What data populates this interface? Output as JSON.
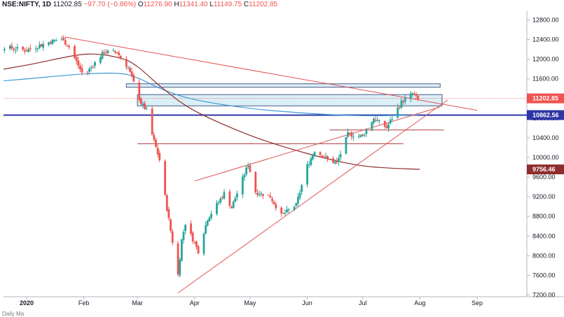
{
  "header": {
    "symbol": "NSE:NIFTY, 1D",
    "price": "11202.85",
    "change": "−97.70 (−0.86%)",
    "open_label": "O",
    "open": "11276.90",
    "high_label": "H",
    "high": "11341.40",
    "low_label": "L",
    "low": "11149.75",
    "close_label": "C",
    "close": "11202.85"
  },
  "footer": {
    "text": "Daily Ma"
  },
  "colors": {
    "up": "#26a69a",
    "down": "#ef5350",
    "ma_slow": "#8d2d2d",
    "ma_fast": "#3d9ad6",
    "trend": "#e05252",
    "hline_blue": "#2e35a5",
    "zone": "#cfeaf4"
  },
  "chart_data": {
    "type": "candlestick",
    "title": "",
    "ylim": [
      6950,
      12950
    ],
    "yticks": [
      "12800.00",
      "12400.00",
      "12000.00",
      "11600.00",
      "11200.00",
      "10800.00",
      "10400.00",
      "10000.00",
      "9600.00",
      "9200.00",
      "8800.00",
      "8400.00",
      "8000.00",
      "7600.00",
      "7200.00"
    ],
    "ytick_values": [
      12800,
      12400,
      12000,
      11600,
      11200,
      10800,
      10400,
      10000,
      9600,
      9200,
      8800,
      8400,
      8000,
      7600,
      7200
    ],
    "xticks": [
      {
        "label": "2020",
        "date": "2020-01-01",
        "bold": true
      },
      {
        "label": "Feb",
        "date": "2020-02-01"
      },
      {
        "label": "Mar",
        "date": "2020-03-01"
      },
      {
        "label": "Apr",
        "date": "2020-04-01"
      },
      {
        "label": "May",
        "date": "2020-05-01"
      },
      {
        "label": "Jun",
        "date": "2020-06-01"
      },
      {
        "label": "Jul",
        "date": "2020-07-01"
      },
      {
        "label": "Aug",
        "date": "2020-08-01"
      },
      {
        "label": "Sep",
        "date": "2020-09-01"
      }
    ],
    "price_labels": [
      {
        "text": "11202.85",
        "value": 11202.85,
        "color": "#ef5350"
      },
      {
        "text": "10862.56",
        "value": 10862.56,
        "color": "#2e35a5"
      },
      {
        "text": "9756.46",
        "value": 9756.46,
        "color": "#8d2d2d"
      }
    ],
    "anchors": [
      [
        "2019-12-02",
        12050
      ],
      [
        "2019-12-10",
        12100
      ],
      [
        "2019-12-20",
        12250
      ],
      [
        "2020-01-01",
        12180
      ],
      [
        "2020-01-14",
        12360
      ],
      [
        "2020-01-20",
        12420
      ],
      [
        "2020-01-24",
        12250
      ],
      [
        "2020-02-01",
        11650
      ],
      [
        "2020-02-03",
        11750
      ],
      [
        "2020-02-12",
        12150
      ],
      [
        "2020-02-19",
        12140
      ],
      [
        "2020-02-25",
        11830
      ],
      [
        "2020-03-03",
        11100
      ],
      [
        "2020-03-06",
        10960
      ],
      [
        "2020-03-09",
        10460
      ],
      [
        "2020-03-13",
        9950
      ],
      [
        "2020-03-17",
        8960
      ],
      [
        "2020-03-23",
        7610
      ],
      [
        "2020-03-25",
        8320
      ],
      [
        "2020-03-27",
        8660
      ],
      [
        "2020-04-03",
        8090
      ],
      [
        "2020-04-08",
        8750
      ],
      [
        "2020-04-17",
        9270
      ],
      [
        "2020-04-21",
        8980
      ],
      [
        "2020-04-30",
        9860
      ],
      [
        "2020-05-04",
        9300
      ],
      [
        "2020-05-12",
        9200
      ],
      [
        "2020-05-18",
        8820
      ],
      [
        "2020-05-26",
        9030
      ],
      [
        "2020-06-01",
        9830
      ],
      [
        "2020-06-05",
        10140
      ],
      [
        "2020-06-12",
        9970
      ],
      [
        "2020-06-17",
        9880
      ],
      [
        "2020-06-23",
        10470
      ],
      [
        "2020-07-01",
        10430
      ],
      [
        "2020-07-07",
        10800
      ],
      [
        "2020-07-14",
        10610
      ],
      [
        "2020-07-16",
        10740
      ],
      [
        "2020-07-22",
        11130
      ],
      [
        "2020-07-28",
        11300
      ],
      [
        "2020-07-31",
        11180
      ]
    ],
    "ma_fast": [
      [
        "2019-12-01",
        11500
      ],
      [
        "2020-01-01",
        11600
      ],
      [
        "2020-02-01",
        11700
      ],
      [
        "2020-02-20",
        11710
      ],
      [
        "2020-03-01",
        11620
      ],
      [
        "2020-03-15",
        11380
      ],
      [
        "2020-04-01",
        11180
      ],
      [
        "2020-05-01",
        11000
      ],
      [
        "2020-06-01",
        10900
      ],
      [
        "2020-07-01",
        10850
      ],
      [
        "2020-07-31",
        10862.56
      ]
    ],
    "ma_slow": [
      [
        "2019-12-01",
        11680
      ],
      [
        "2020-01-01",
        11880
      ],
      [
        "2020-02-01",
        12100
      ],
      [
        "2020-02-20",
        12030
      ],
      [
        "2020-03-01",
        11850
      ],
      [
        "2020-03-15",
        11400
      ],
      [
        "2020-04-01",
        10950
      ],
      [
        "2020-05-01",
        10450
      ],
      [
        "2020-06-01",
        10080
      ],
      [
        "2020-07-01",
        9830
      ],
      [
        "2020-08-01",
        9756.46
      ]
    ],
    "trendlines": [
      {
        "from": [
          "2020-01-22",
          12450
        ],
        "to": [
          "2020-09-01",
          10960
        ]
      },
      {
        "from": [
          "2020-03-23",
          7240
        ],
        "to": [
          "2020-08-16",
          11170
        ]
      },
      {
        "from": [
          "2020-04-01",
          9520
        ],
        "to": [
          "2020-08-12",
          11030
        ]
      }
    ],
    "levels": [
      {
        "value": 10862.56,
        "from": "2019-12-01",
        "to": "2020-09-30",
        "kind": "blue"
      },
      {
        "value": 10280,
        "from": "2020-03-01",
        "to": "2020-07-23",
        "kind": "red"
      },
      {
        "value": 10560,
        "from": "2020-06-13",
        "to": "2020-08-14",
        "kind": "red"
      },
      {
        "value": 11202.85,
        "from": "2019-12-01",
        "to": "2020-09-30",
        "kind": "dotted"
      }
    ],
    "zones": [
      {
        "top": 11500,
        "bottom": 11430,
        "from": "2020-02-24",
        "to": "2020-08-12"
      },
      {
        "top": 11280,
        "bottom": 11050,
        "from": "2020-03-01",
        "to": "2020-08-13"
      }
    ]
  }
}
